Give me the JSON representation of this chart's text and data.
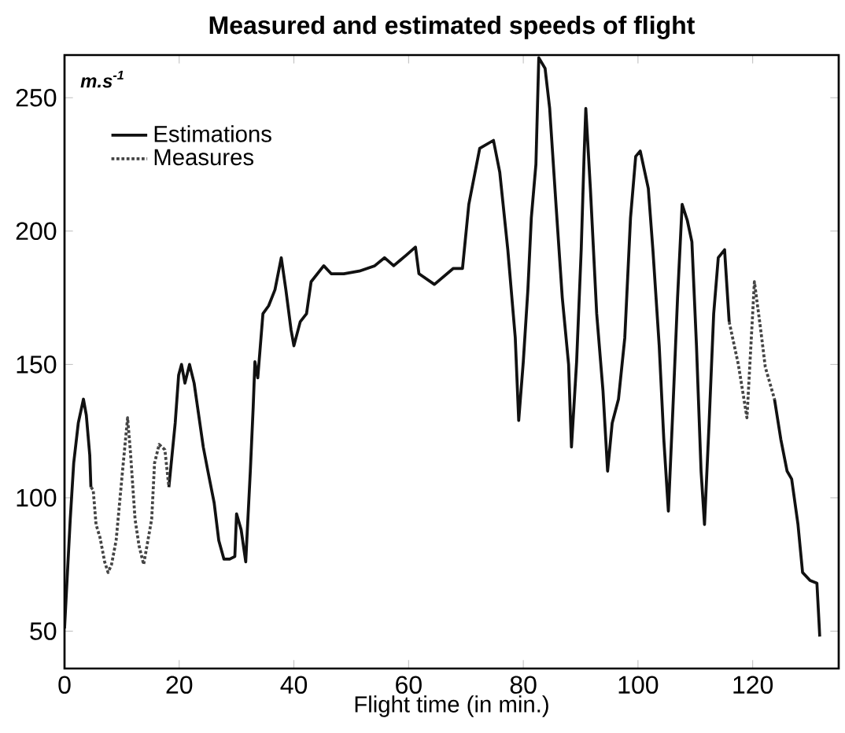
{
  "chart_data": {
    "type": "line",
    "title": "Measured and estimated speeds of flight",
    "xlabel": "Flight time (in min.)",
    "ylabel": "m.s$^{-1}$",
    "xlim": [
      0,
      135
    ],
    "ylim": [
      36,
      266
    ],
    "xticks": [
      0,
      20,
      40,
      60,
      80,
      100,
      120
    ],
    "yticks": [
      50,
      100,
      150,
      200,
      250
    ],
    "legend": "top left",
    "grid": false,
    "marker": "none",
    "series": [
      {
        "name": "Estimations",
        "color": "#111111",
        "line_style": "solid",
        "x": [
          0,
          1,
          1.6,
          2.4,
          3.3,
          3.8,
          4.4,
          4.6,
          null,
          18.2,
          19.3,
          19.9,
          20.4,
          21,
          21.8,
          22.6,
          23.4,
          24.2,
          25,
          26.1,
          26.9,
          27.8,
          28.8,
          29.7,
          30,
          30.8,
          31.6,
          32.4,
          32.9,
          33.2,
          33.7,
          34.6,
          35.6,
          36.7,
          37.8,
          38.6,
          39.5,
          40,
          41.1,
          42.2,
          43,
          44.1,
          45.2,
          46.5,
          48.7,
          51.4,
          54.1,
          55.8,
          57.4,
          59.6,
          61.2,
          61.8,
          64.5,
          67.8,
          69.4,
          70.5,
          72.4,
          74.8,
          75.9,
          77.3,
          78.6,
          79.2,
          80,
          80.8,
          81.4,
          82.2,
          82.7,
          83.8,
          84.6,
          85.7,
          86.8,
          87.9,
          88.4,
          89.3,
          90.1,
          90.6,
          90.9,
          91.7,
          92.8,
          93.9,
          94.7,
          95.5,
          96.6,
          97.7,
          98.7,
          99.6,
          100.4,
          101.8,
          102.6,
          103.7,
          104.5,
          105.3,
          106.1,
          106.9,
          107.7,
          108.6,
          109.4,
          110.2,
          111,
          111.6,
          112.4,
          113.2,
          114,
          115.1,
          115.9,
          null,
          123.8,
          124.9,
          126,
          126.8,
          127.9,
          128.7,
          130,
          131.2,
          131.7
        ],
        "values": [
          51,
          92,
          113,
          128,
          137,
          131,
          116,
          104,
          null,
          104,
          128,
          146,
          150,
          143,
          150,
          143,
          131,
          119,
          110,
          98,
          84,
          77,
          77,
          78,
          94,
          88,
          76,
          110,
          134,
          151,
          145,
          169,
          172,
          178,
          190,
          178,
          163,
          157,
          166,
          169,
          181,
          184,
          187,
          184,
          184,
          185,
          187,
          190,
          187,
          191,
          194,
          184,
          180,
          186,
          186,
          210,
          231,
          234,
          222,
          193,
          160,
          129,
          151,
          178,
          205,
          225,
          265,
          261,
          246,
          210,
          175,
          150,
          119,
          151,
          193,
          228,
          246,
          216,
          169,
          140,
          110,
          128,
          137,
          160,
          205,
          228,
          230,
          216,
          193,
          157,
          122,
          95,
          134,
          175,
          210,
          204,
          196,
          157,
          110,
          90,
          128,
          169,
          190,
          193,
          166,
          null,
          137,
          122,
          110,
          107,
          90,
          72,
          69,
          68,
          48
        ]
      },
      {
        "name": "Measures",
        "color": "#444444",
        "line_style": "dotted",
        "x": [
          4.6,
          5,
          5.5,
          6.2,
          7,
          7.6,
          8.2,
          9,
          10.2,
          11,
          11.5,
          12.3,
          13,
          13.8,
          15.2,
          15.7,
          16.5,
          17.5,
          18.2,
          null,
          115.9,
          117.5,
          119,
          120.3,
          121.4,
          122.2,
          123.8
        ],
        "values": [
          104,
          103,
          90,
          85,
          76,
          72,
          75,
          84,
          112,
          130,
          117,
          92,
          82,
          75,
          92,
          113,
          120,
          118,
          104,
          null,
          166,
          150,
          130,
          181,
          163,
          149,
          137
        ]
      }
    ]
  }
}
